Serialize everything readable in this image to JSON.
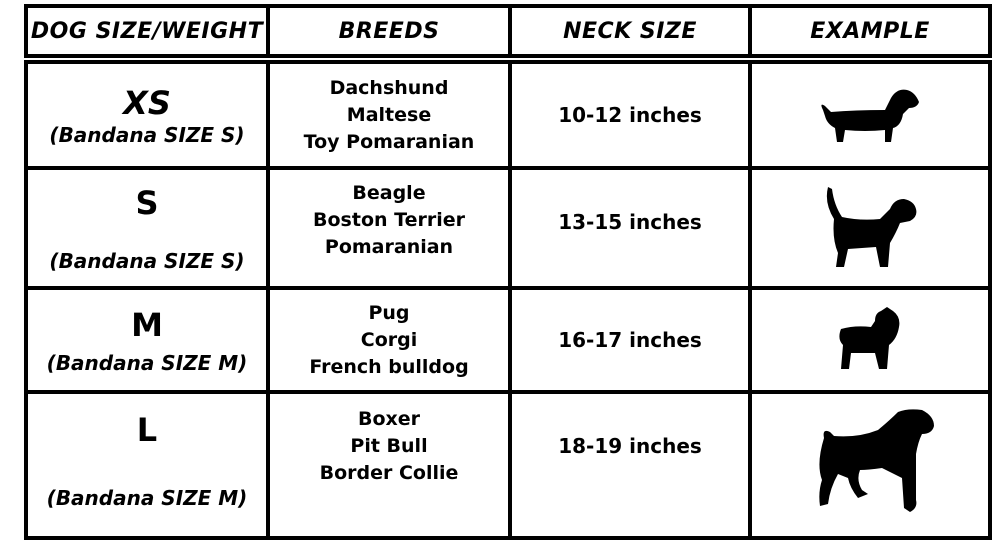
{
  "headers": [
    "DOG SIZE/WEIGHT",
    "BREEDS",
    "NECK SIZE",
    "EXAMPLE"
  ],
  "rows": [
    {
      "size": "XS",
      "bandana": "(Bandana SIZE S)",
      "breeds": [
        "Dachshund",
        "Maltese",
        "Toy Pomaranian"
      ],
      "neck": "10-12 inches",
      "icon": "dachshund-silhouette-icon"
    },
    {
      "size": "S",
      "bandana": "(Bandana SIZE S)",
      "breeds": [
        "Beagle",
        "Boston Terrier",
        "Pomaranian"
      ],
      "neck": "13-15 inches",
      "icon": "beagle-silhouette-icon"
    },
    {
      "size": "M",
      "bandana": "(Bandana SIZE M)",
      "breeds": [
        "Pug",
        "Corgi",
        "French bulldog"
      ],
      "neck": "16-17 inches",
      "icon": "bulldog-silhouette-icon"
    },
    {
      "size": "L",
      "bandana": "(Bandana SIZE M)",
      "breeds": [
        "Boxer",
        "Pit Bull",
        "Border Collie"
      ],
      "neck": "18-19 inches",
      "icon": "boxer-silhouette-icon"
    }
  ]
}
